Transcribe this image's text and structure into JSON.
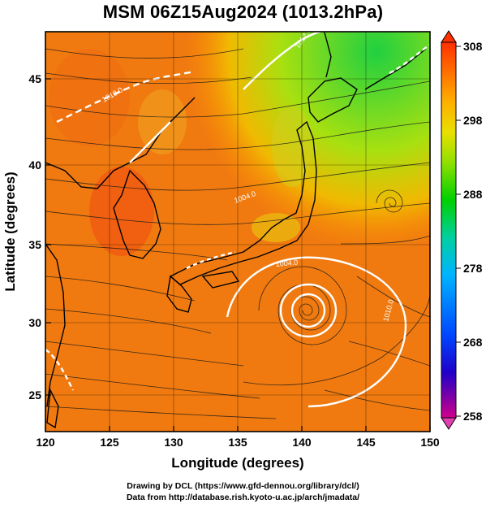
{
  "title": "MSM 06Z15Aug2024 (1013.2hPa)",
  "axes": {
    "xlabel": "Longitude (degrees)",
    "ylabel": "Latitude  (degrees)",
    "xticks": [
      "120",
      "125",
      "130",
      "135",
      "140",
      "145",
      "150"
    ],
    "yticks": [
      "25",
      "30",
      "35",
      "40",
      "45"
    ]
  },
  "map": {
    "lon_range": [
      120,
      150
    ],
    "lat_range": [
      22.4,
      47.6
    ],
    "field": "temperature (K) with streamlines and pressure contours",
    "contour_labels": [
      "1018.0",
      "1012.0",
      "1004.0",
      "1010.0",
      "1004.0"
    ],
    "cyclone_center": {
      "lon": 140.5,
      "lat": 30.7
    }
  },
  "colorbar": {
    "labels": [
      "308",
      "298",
      "288",
      "278",
      "268",
      "258"
    ],
    "range": [
      258,
      308
    ],
    "colors": [
      "#d0008a",
      "#0000c8",
      "#0046ff",
      "#00b4ff",
      "#00d8b4",
      "#00d000",
      "#78e000",
      "#e0e000",
      "#ffb000",
      "#ff7000",
      "#ff3000"
    ]
  },
  "credits": {
    "line1": "Drawing by DCL (https://www.gfd-dennou.org/library/dcl/)",
    "line2": "Data from http://database.rish.kyoto-u.ac.jp/arch/jmadata/"
  }
}
